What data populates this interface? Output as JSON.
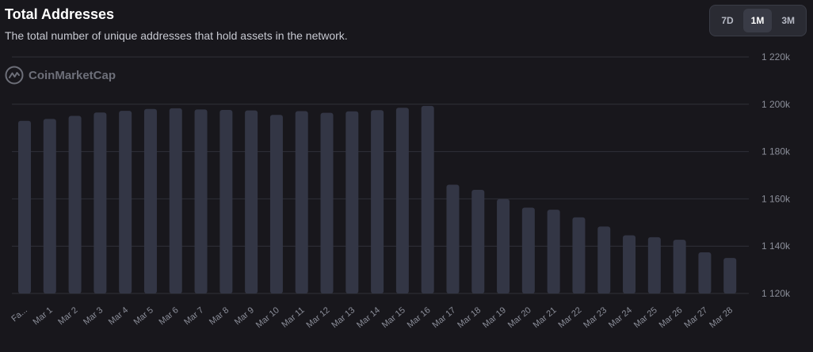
{
  "header": {
    "title": "Total Addresses",
    "subtitle": "The total number of unique addresses that hold assets in the network."
  },
  "range_selector": {
    "options": [
      "7D",
      "1M",
      "3M"
    ],
    "selected": "1M"
  },
  "watermark": {
    "text": "CoinMarketCap"
  },
  "colors": {
    "background": "#18171c",
    "bar": "#333645",
    "grid": "#2f3038",
    "tick_text": "#8b8e99"
  },
  "chart_data": {
    "type": "bar",
    "categories": [
      "Fa...",
      "Mar 1",
      "Mar 2",
      "Mar 3",
      "Mar 4",
      "Mar 5",
      "Mar 6",
      "Mar 7",
      "Mar 8",
      "Mar 9",
      "Mar 10",
      "Mar 11",
      "Mar 12",
      "Mar 13",
      "Mar 14",
      "Mar 15",
      "Mar 16",
      "Mar 17",
      "Mar 18",
      "Mar 19",
      "Mar 20",
      "Mar 21",
      "Mar 22",
      "Mar 23",
      "Mar 24",
      "Mar 25",
      "Mar 26",
      "Mar 27",
      "Mar 28"
    ],
    "values": [
      1193000,
      1193800,
      1195100,
      1196500,
      1197200,
      1198000,
      1198300,
      1197800,
      1197600,
      1197400,
      1195500,
      1197100,
      1196400,
      1197000,
      1197500,
      1198500,
      1199300,
      1166000,
      1163800,
      1159900,
      1156300,
      1155400,
      1152200,
      1148300,
      1144600,
      1143800,
      1142700,
      1137400,
      1135000
    ],
    "title": "Total Addresses",
    "ylim": [
      1120000,
      1220000
    ],
    "yticks": [
      1120000,
      1140000,
      1160000,
      1180000,
      1200000,
      1220000
    ],
    "ytick_labels": [
      "1 120k",
      "1 140k",
      "1 160k",
      "1 180k",
      "1 200k",
      "1 220k"
    ],
    "grid": true,
    "y_axis_position": "right"
  }
}
